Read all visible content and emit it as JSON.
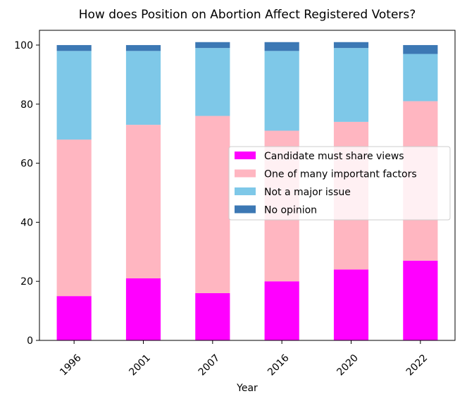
{
  "chart_data": {
    "type": "bar",
    "stacked": true,
    "title": "How does Position on Abortion Affect Registered Voters?",
    "xlabel": "Year",
    "ylabel": "",
    "categories": [
      "1996",
      "2001",
      "2007",
      "2016",
      "2020",
      "2022"
    ],
    "ylim": [
      0,
      105
    ],
    "yticks": [
      0,
      20,
      40,
      60,
      80,
      100
    ],
    "series": [
      {
        "name": "Candidate must share views",
        "color": "#ff00ff",
        "values": [
          15,
          21,
          16,
          20,
          24,
          27
        ]
      },
      {
        "name": "One of many important factors",
        "color": "#ffb6c1",
        "values": [
          53,
          52,
          60,
          51,
          50,
          54
        ]
      },
      {
        "name": "Not a major issue",
        "color": "#7ec8e8",
        "values": [
          30,
          25,
          23,
          27,
          25,
          16
        ]
      },
      {
        "name": "No opinion",
        "color": "#3c78b4",
        "values": [
          2,
          2,
          2,
          3,
          2,
          3
        ]
      }
    ],
    "legend_position": "center-right",
    "grid": false
  }
}
